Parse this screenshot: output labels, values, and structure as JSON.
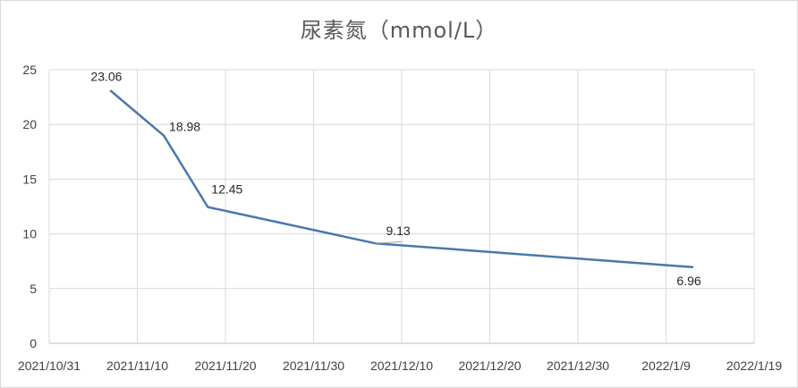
{
  "chart_data": {
    "type": "line",
    "title": "尿素氮（mmol/L）",
    "x_tick_labels": [
      "2021/10/31",
      "2021/11/10",
      "2021/11/20",
      "2021/11/30",
      "2021/12/10",
      "2021/12/20",
      "2021/12/30",
      "2022/1/9",
      "2022/1/19"
    ],
    "xlim": [
      "2021-10-31",
      "2022-01-19"
    ],
    "ylim": [
      0,
      25
    ],
    "y_ticks": [
      0,
      5,
      10,
      15,
      20,
      25
    ],
    "grid": true,
    "series": [
      {
        "color": "#4a78ad",
        "points": [
          {
            "x": "2021-11-07",
            "y": 23.06,
            "label": "23.06"
          },
          {
            "x": "2021-11-13",
            "y": 18.98,
            "label": "18.98"
          },
          {
            "x": "2021-11-18",
            "y": 12.45,
            "label": "12.45"
          },
          {
            "x": "2021-12-07",
            "y": 9.13,
            "label": "9.13"
          },
          {
            "x": "2022-01-12",
            "y": 6.96,
            "label": "6.96"
          }
        ]
      }
    ]
  }
}
